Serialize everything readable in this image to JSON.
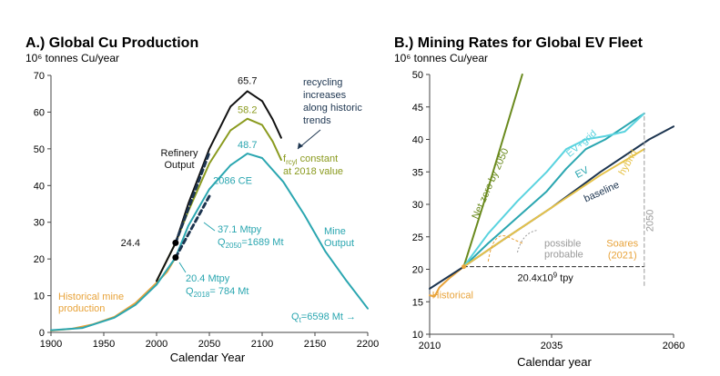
{
  "colors": {
    "title": "#1f6fae",
    "black": "#111111",
    "olive": "#8a9a1e",
    "teal": "#2aa6b0",
    "orange": "#e8a33a",
    "navy": "#1d3550",
    "green": "#6a8a1e",
    "cyan": "#5ad3df",
    "yellow": "#e6c34a",
    "gray": "#9a9a9a"
  },
  "chart_data": [
    {
      "type": "line",
      "title": "A.) Global Cu Production",
      "units": "10⁶ tonnes Cu/year",
      "xlabel": "Calendar Year",
      "xlim": [
        1900,
        2200
      ],
      "ylim": [
        0,
        70
      ],
      "xticks": [
        "1900",
        "1950",
        "2000",
        "2050",
        "2100",
        "2150",
        "2200"
      ],
      "yticks": [
        "0",
        "10",
        "20",
        "30",
        "40",
        "50",
        "60",
        "70"
      ],
      "series": [
        {
          "key": "historical",
          "color": "#e8a33a",
          "width": 2,
          "points": [
            [
              1900,
              0.5
            ],
            [
              1920,
              1.0
            ],
            [
              1940,
              2.2
            ],
            [
              1960,
              4.2
            ],
            [
              1980,
              8.0
            ],
            [
              2000,
              13.5
            ],
            [
              2010,
              16.5
            ],
            [
              2018,
              20.4
            ]
          ]
        },
        {
          "key": "mine",
          "color": "#2aa6b0",
          "width": 2,
          "points": [
            [
              1900,
              0.6
            ],
            [
              1930,
              1.2
            ],
            [
              1960,
              4.0
            ],
            [
              1980,
              7.5
            ],
            [
              2000,
              13.0
            ],
            [
              2018,
              20.4
            ],
            [
              2030,
              29.0
            ],
            [
              2050,
              39.0
            ],
            [
              2070,
              45.5
            ],
            [
              2086,
              48.7
            ],
            [
              2100,
              47.5
            ],
            [
              2120,
              41.0
            ],
            [
              2140,
              32.0
            ],
            [
              2160,
              22.0
            ],
            [
              2180,
              14.0
            ],
            [
              2200,
              6.5
            ]
          ]
        },
        {
          "key": "refinery_const",
          "color": "#8a9a1e",
          "width": 2,
          "points": [
            [
              2000,
              14.0
            ],
            [
              2018,
              24.4
            ],
            [
              2030,
              33.0
            ],
            [
              2050,
              46.0
            ],
            [
              2070,
              55.0
            ],
            [
              2086,
              58.2
            ],
            [
              2100,
              56.5
            ],
            [
              2110,
              52.0
            ],
            [
              2118,
              47.0
            ]
          ]
        },
        {
          "key": "recycling",
          "color": "#111111",
          "width": 2,
          "points": [
            [
              2000,
              14.0
            ],
            [
              2018,
              24.4
            ],
            [
              2030,
              35.0
            ],
            [
              2050,
              50.0
            ],
            [
              2070,
              61.5
            ],
            [
              2086,
              65.7
            ],
            [
              2100,
              63.0
            ],
            [
              2110,
              58.0
            ],
            [
              2118,
              53.0
            ]
          ]
        },
        {
          "key": "mine_proj",
          "color": "#1d3550",
          "width": 3,
          "dash": "5,4",
          "points": [
            [
              2018,
              20.4
            ],
            [
              2050,
              37.1
            ]
          ]
        },
        {
          "key": "refinery_proj",
          "color": "#1d3550",
          "width": 3,
          "dash": "5,4",
          "points": [
            [
              2018,
              24.4
            ],
            [
              2050,
              49.0
            ]
          ]
        }
      ],
      "markers": [
        {
          "x": 2018,
          "y": 24.4,
          "label": "24.4"
        },
        {
          "x": 2018,
          "y": 20.4,
          "label": ""
        }
      ],
      "annotations": {
        "peak_black": "65.7",
        "peak_olive": "58.2",
        "peak_teal": "48.7",
        "recycling": [
          "recycling",
          "increases",
          "along historic",
          "trends"
        ],
        "refinery": [
          "Refinery",
          "Output"
        ],
        "frcyl": [
          "f",
          "rcyl",
          " constant",
          "at 2018 value"
        ],
        "ce": "2086 CE",
        "mtpy2050": "37.1 Mtpy",
        "q2050": [
          "Q",
          "2050",
          "=1689 Mt"
        ],
        "mtpy2018": "20.4 Mtpy",
        "q2018": [
          "Q",
          "2018",
          "= 784 Mt"
        ],
        "mine": [
          "Mine",
          "Output"
        ],
        "historical": [
          "Historical mine",
          "production"
        ],
        "qt": [
          "Q",
          "t",
          "=6598 Mt →"
        ]
      }
    },
    {
      "type": "line",
      "title": "B.) Mining Rates for Global EV Fleet",
      "units": "10⁶ tonnes Cu/year",
      "xlabel": "Calendar year",
      "xlim": [
        2010,
        2060
      ],
      "ylim": [
        10,
        50
      ],
      "xticks": [
        "2010",
        "2035",
        "2060"
      ],
      "yticks": [
        "10",
        "15",
        "20",
        "25",
        "30",
        "35",
        "40",
        "45",
        "50"
      ],
      "series": [
        {
          "key": "historical",
          "color": "#e8a33a",
          "width": 2,
          "points": [
            [
              2010,
              16.0
            ],
            [
              2011,
              15.8
            ],
            [
              2012,
              17.2
            ],
            [
              2014,
              18.6
            ],
            [
              2016,
              19.8
            ],
            [
              2017,
              20.4
            ]
          ]
        },
        {
          "key": "baseline",
          "color": "#1d3550",
          "width": 2,
          "points": [
            [
              2010,
              17.0
            ],
            [
              2017,
              20.4
            ],
            [
              2025,
              24.5
            ],
            [
              2035,
              29.5
            ],
            [
              2045,
              35.0
            ],
            [
              2055,
              40.0
            ],
            [
              2060,
              42.0
            ]
          ]
        },
        {
          "key": "netzero",
          "color": "#6a8a1e",
          "width": 2,
          "points": [
            [
              2017,
              20.4
            ],
            [
              2021,
              30.0
            ],
            [
              2025,
              40.0
            ],
            [
              2029,
              50.0
            ]
          ]
        },
        {
          "key": "ev",
          "color": "#2aa6b0",
          "width": 2,
          "points": [
            [
              2017,
              20.4
            ],
            [
              2022,
              24.0
            ],
            [
              2028,
              28.0
            ],
            [
              2034,
              32.0
            ],
            [
              2038,
              35.5
            ],
            [
              2042,
              38.5
            ],
            [
              2046,
              40.0
            ],
            [
              2049,
              41.5
            ],
            [
              2054,
              44.0
            ]
          ]
        },
        {
          "key": "evgrid",
          "color": "#5ad3df",
          "width": 2,
          "points": [
            [
              2017,
              20.4
            ],
            [
              2022,
              25.5
            ],
            [
              2028,
              30.5
            ],
            [
              2034,
              35.0
            ],
            [
              2038,
              38.5
            ],
            [
              2042,
              40.0
            ],
            [
              2046,
              40.5
            ],
            [
              2050,
              41.2
            ],
            [
              2054,
              44.0
            ]
          ]
        },
        {
          "key": "hybrid",
          "color": "#e6c34a",
          "width": 2,
          "points": [
            [
              2017,
              20.4
            ],
            [
              2025,
              24.5
            ],
            [
              2035,
              29.5
            ],
            [
              2045,
              34.5
            ],
            [
              2054,
              38.5
            ]
          ]
        },
        {
          "key": "flat",
          "color": "#222222",
          "width": 1,
          "dash": "4,3",
          "points": [
            [
              2017,
              20.4
            ],
            [
              2054,
              20.4
            ]
          ]
        },
        {
          "key": "v2050",
          "color": "#9a9a9a",
          "width": 1,
          "dash": "4,3",
          "points": [
            [
              2054,
              17.5
            ],
            [
              2054,
              44.0
            ]
          ]
        }
      ],
      "annotations": {
        "netzero": "Net zero by 2050",
        "evgrid": "EV+grid",
        "ev": "EV",
        "baseline": "baseline",
        "hybrid": "hybrid",
        "year2050": "2050",
        "possible": "possible",
        "probable": "probable",
        "soares": [
          "Soares",
          "(2021)"
        ],
        "tpy": [
          "20.4x10",
          "9",
          " tpy"
        ],
        "historical": "Historical"
      }
    }
  ]
}
